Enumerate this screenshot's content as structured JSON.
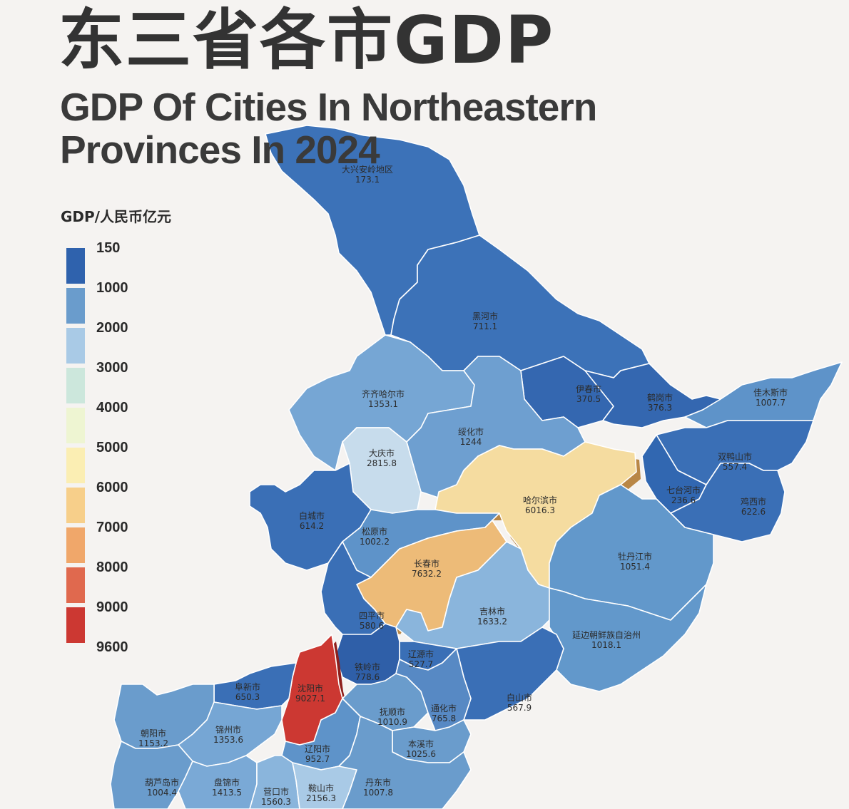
{
  "title_cn": "东三省各市GDP",
  "title_en": "GDP Of Cities In Northeastern Provinces In 2024",
  "legend": {
    "title": "GDP/人民币亿元",
    "stops": [
      {
        "label": "150",
        "color": "#2f62ad"
      },
      {
        "label": "1000",
        "color": "#6a9ccc"
      },
      {
        "label": "2000",
        "color": "#a9cae6"
      },
      {
        "label": "3000",
        "color": "#cce7dc"
      },
      {
        "label": "4000",
        "color": "#eef5d2"
      },
      {
        "label": "5000",
        "color": "#fbeeb3"
      },
      {
        "label": "6000",
        "color": "#f7cf8a"
      },
      {
        "label": "7000",
        "color": "#f0a76a"
      },
      {
        "label": "8000",
        "color": "#e0694e"
      },
      {
        "label": "9000",
        "color": "#cc3832"
      }
    ],
    "last_label": "9600"
  },
  "cities": [
    {
      "name": "大兴安岭地区",
      "gdp": "173.1",
      "color": "#3c72b8"
    },
    {
      "name": "黑河市",
      "gdp": "711.1",
      "color": "#3c72b8"
    },
    {
      "name": "伊春市",
      "gdp": "370.5",
      "color": "#3467b0"
    },
    {
      "name": "鹤岗市",
      "gdp": "376.3",
      "color": "#3467b0"
    },
    {
      "name": "佳木斯市",
      "gdp": "1007.7",
      "color": "#5e93c9"
    },
    {
      "name": "齐齐哈尔市",
      "gdp": "1353.1",
      "color": "#76a6d4"
    },
    {
      "name": "绥化市",
      "gdp": "1244",
      "color": "#6e9fd0"
    },
    {
      "name": "大庆市",
      "gdp": "2815.8",
      "color": "#c7dcec"
    },
    {
      "name": "双鸭山市",
      "gdp": "557.4",
      "color": "#3a6fb6"
    },
    {
      "name": "七台河市",
      "gdp": "236.6",
      "color": "#3167b1"
    },
    {
      "name": "鸡西市",
      "gdp": "622.6",
      "color": "#3a6fb6"
    },
    {
      "name": "哈尔滨市",
      "gdp": "6016.3",
      "color": "#f5dca0"
    },
    {
      "name": "白城市",
      "gdp": "614.2",
      "color": "#3a6fb6"
    },
    {
      "name": "松原市",
      "gdp": "1002.2",
      "color": "#5e93c9"
    },
    {
      "name": "长春市",
      "gdp": "7632.2",
      "color": "#edbb78"
    },
    {
      "name": "牡丹江市",
      "gdp": "1051.4",
      "color": "#6298cb"
    },
    {
      "name": "四平市",
      "gdp": "580.6",
      "color": "#3a6fb6"
    },
    {
      "name": "吉林市",
      "gdp": "1633.2",
      "color": "#8ab5dc"
    },
    {
      "name": "延边朝鲜族自治州",
      "gdp": "1018.1",
      "color": "#6298cb"
    },
    {
      "name": "辽源市",
      "gdp": "527.7",
      "color": "#3a6fb6"
    },
    {
      "name": "铁岭市",
      "gdp": "778.6",
      "color": "#2f5fa8"
    },
    {
      "name": "沈阳市",
      "gdp": "9027.1",
      "color": "#cc3832"
    },
    {
      "name": "阜新市",
      "gdp": "650.3",
      "color": "#3a6fb6"
    },
    {
      "name": "白山市",
      "gdp": "567.9",
      "color": "#3a6fb6"
    },
    {
      "name": "抚顺市",
      "gdp": "1010.9",
      "color": "#6a9ccc"
    },
    {
      "name": "通化市",
      "gdp": "765.8",
      "color": "#5789c4"
    },
    {
      "name": "朝阳市",
      "gdp": "1153.2",
      "color": "#6a9ccc"
    },
    {
      "name": "锦州市",
      "gdp": "1353.6",
      "color": "#76a6d4"
    },
    {
      "name": "本溪市",
      "gdp": "1025.6",
      "color": "#6a9ccc"
    },
    {
      "name": "辽阳市",
      "gdp": "952.7",
      "color": "#5e93c9"
    },
    {
      "name": "葫芦岛市",
      "gdp": "1004.4",
      "color": "#6a9ccc"
    },
    {
      "name": "盘锦市",
      "gdp": "1413.5",
      "color": "#7aa9d6"
    },
    {
      "name": "营口市",
      "gdp": "1560.3",
      "color": "#8ab5dc"
    },
    {
      "name": "鞍山市",
      "gdp": "2156.3",
      "color": "#a9cae6"
    },
    {
      "name": "丹东市",
      "gdp": "1007.8",
      "color": "#6a9ccc"
    }
  ]
}
